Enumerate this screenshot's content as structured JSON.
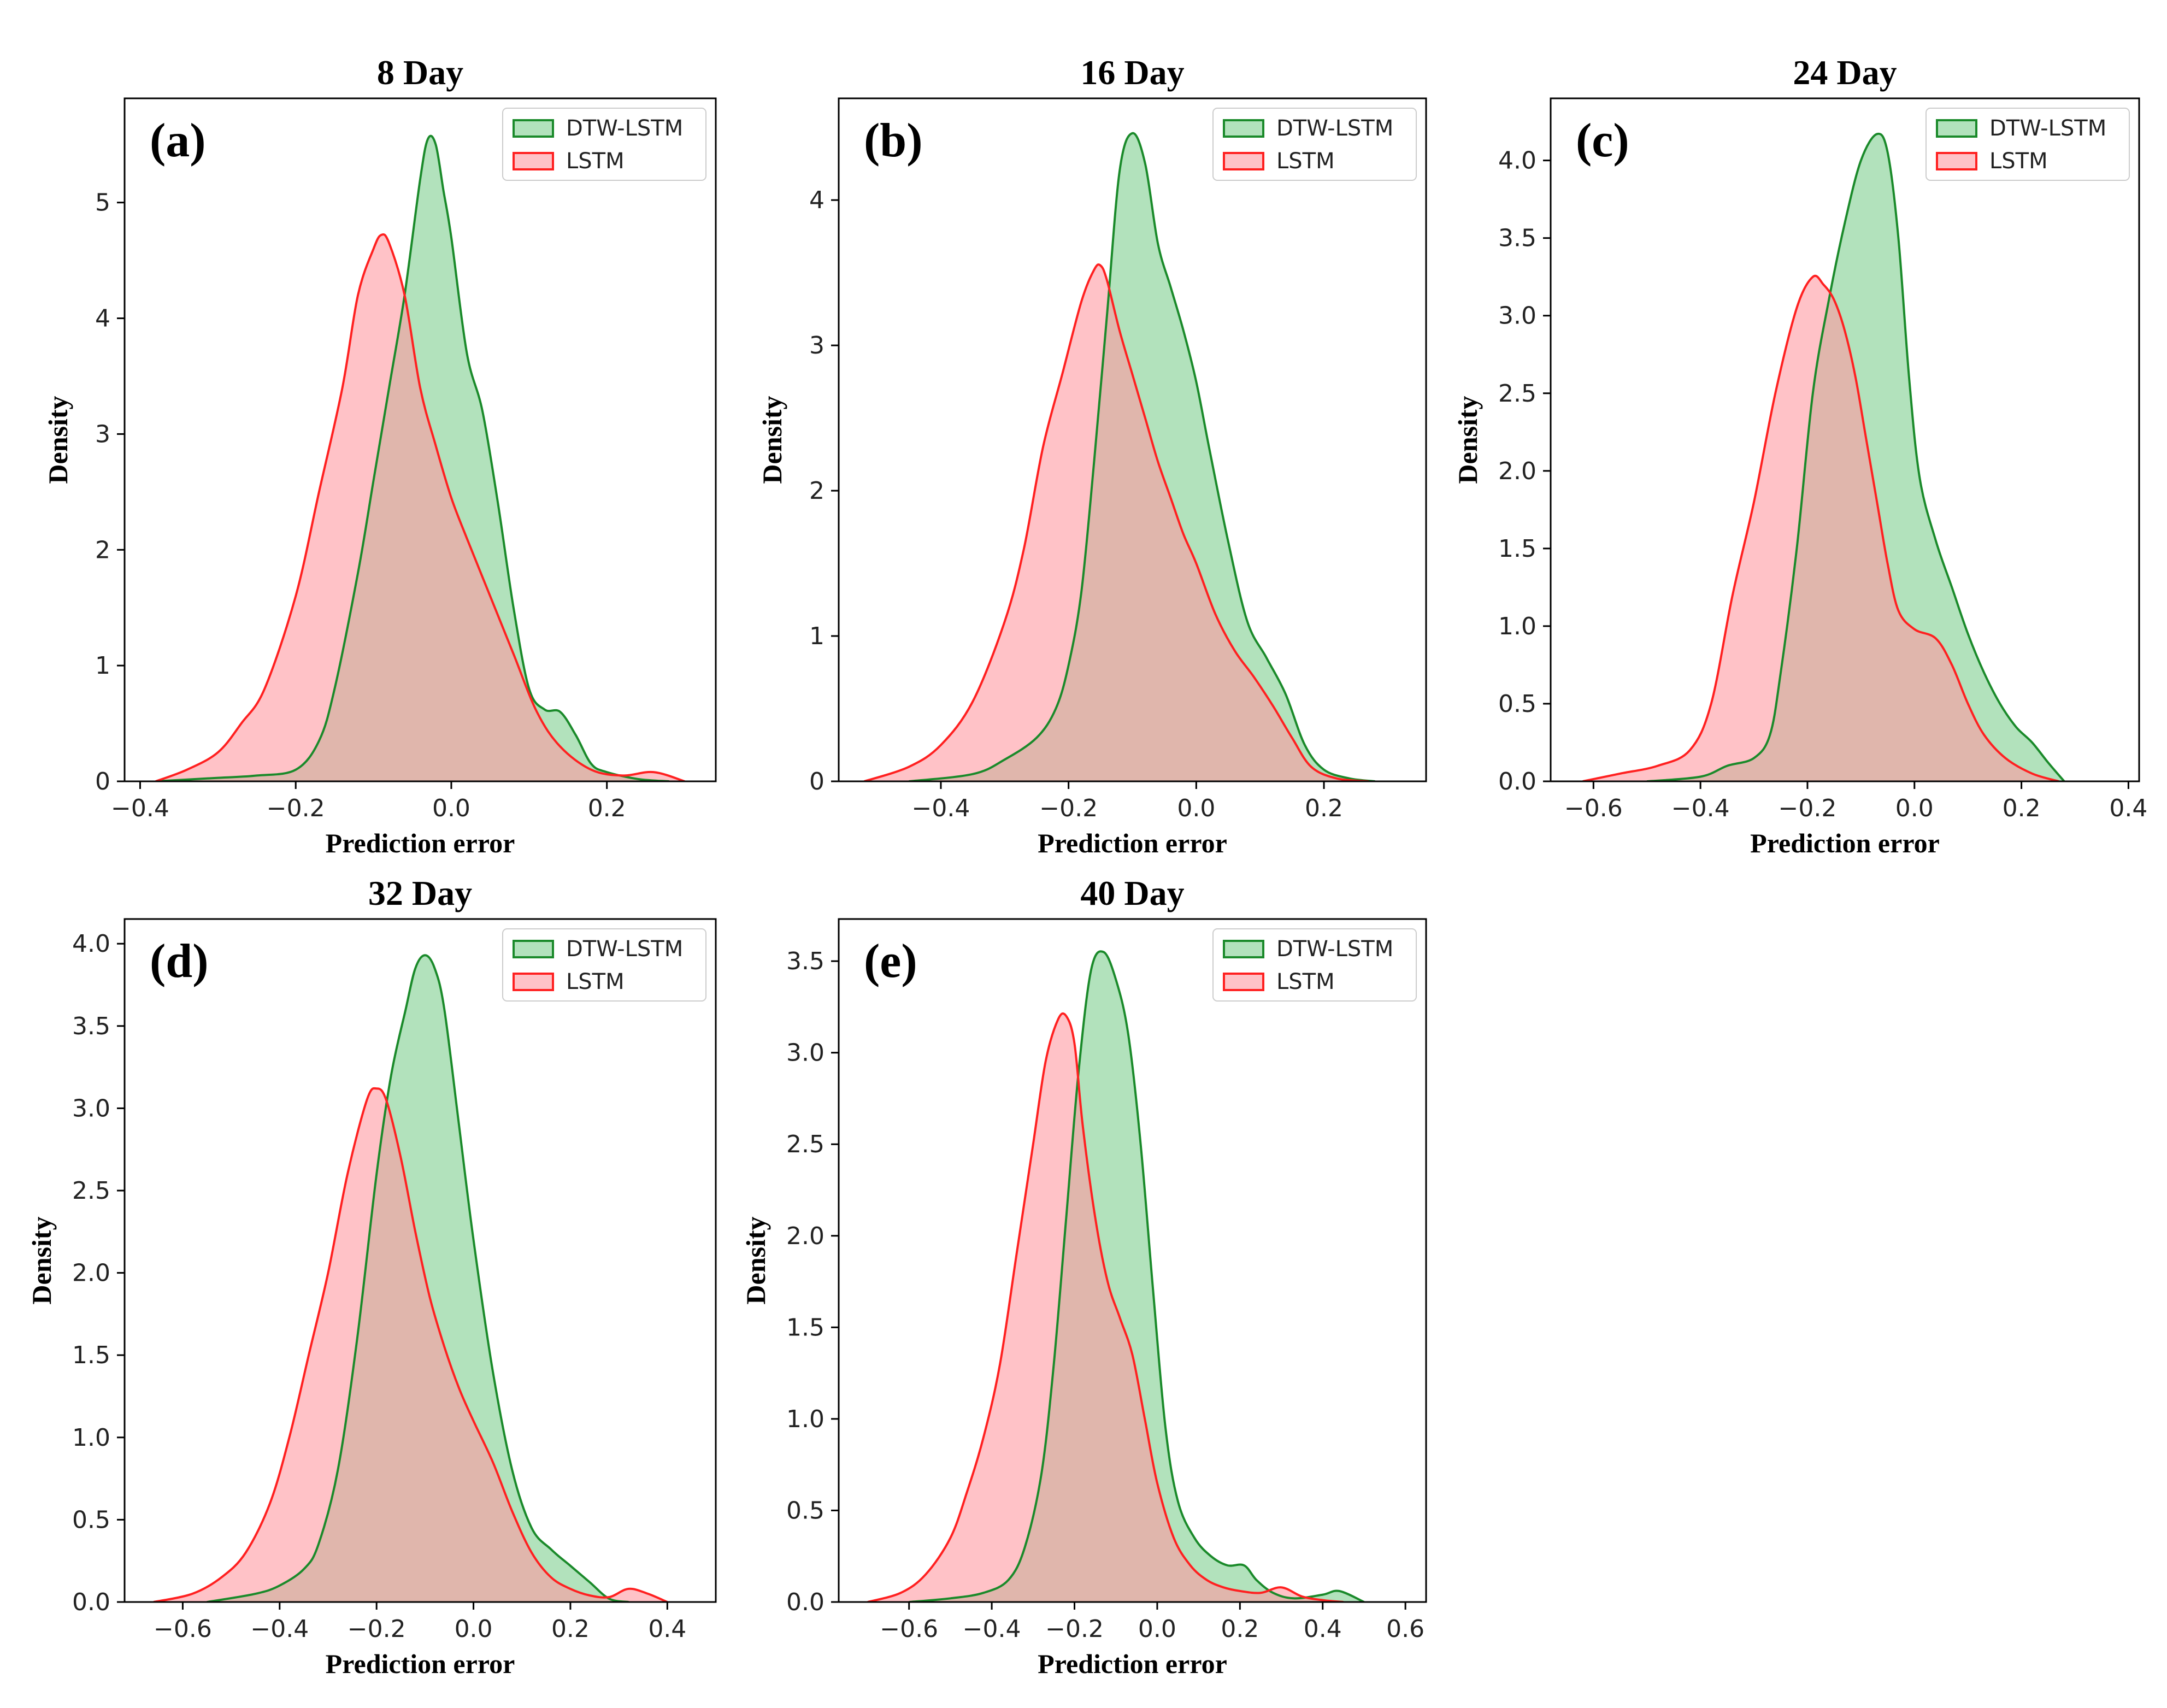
{
  "colors": {
    "dtw_line": "#1a8a2a",
    "dtw_fill": "#7fcf8f",
    "lstm_line": "#ff2020",
    "lstm_fill": "#ff9aa2",
    "axes": "#000000"
  },
  "chart_data": [
    {
      "type": "area",
      "id": "a",
      "letter": "(a)",
      "title": "8 Day",
      "xlabel": "Prediction error",
      "ylabel": "Density",
      "xlim": [
        -0.42,
        0.34
      ],
      "ylim": [
        0,
        5.9
      ],
      "xticks": [
        -0.4,
        -0.2,
        0.0,
        0.2
      ],
      "xtick_labels": [
        "−0.4",
        "−0.2",
        "0.0",
        "0.2"
      ],
      "yticks": [
        0,
        1,
        2,
        3,
        4,
        5
      ],
      "ytick_labels": [
        "0",
        "1",
        "2",
        "3",
        "4",
        "5"
      ],
      "legend": [
        "DTW-LSTM",
        "LSTM"
      ],
      "series": [
        {
          "name": "DTW-LSTM",
          "x": [
            -0.38,
            -0.3,
            -0.25,
            -0.2,
            -0.17,
            -0.15,
            -0.12,
            -0.1,
            -0.08,
            -0.06,
            -0.04,
            -0.03,
            -0.02,
            -0.01,
            0.0,
            0.02,
            0.04,
            0.06,
            0.08,
            0.1,
            0.12,
            0.14,
            0.16,
            0.18,
            0.2,
            0.24,
            0.28
          ],
          "y": [
            0,
            0.03,
            0.05,
            0.1,
            0.35,
            0.8,
            1.8,
            2.6,
            3.4,
            4.2,
            5.2,
            5.55,
            5.5,
            5.1,
            4.7,
            3.7,
            3.2,
            2.4,
            1.5,
            0.8,
            0.62,
            0.6,
            0.4,
            0.15,
            0.08,
            0.02,
            0
          ]
        },
        {
          "name": "LSTM",
          "x": [
            -0.38,
            -0.34,
            -0.3,
            -0.27,
            -0.24,
            -0.2,
            -0.17,
            -0.14,
            -0.12,
            -0.1,
            -0.09,
            -0.08,
            -0.06,
            -0.04,
            -0.02,
            0.0,
            0.02,
            0.05,
            0.08,
            0.11,
            0.14,
            0.18,
            0.22,
            0.26,
            0.3
          ],
          "y": [
            0,
            0.1,
            0.25,
            0.5,
            0.8,
            1.6,
            2.5,
            3.4,
            4.2,
            4.6,
            4.72,
            4.65,
            4.2,
            3.4,
            2.9,
            2.45,
            2.1,
            1.6,
            1.1,
            0.6,
            0.3,
            0.1,
            0.05,
            0.08,
            0
          ]
        }
      ]
    },
    {
      "type": "area",
      "id": "b",
      "letter": "(b)",
      "title": "16 Day",
      "xlabel": "Prediction error",
      "ylabel": "Density",
      "xlim": [
        -0.56,
        0.36
      ],
      "ylim": [
        0,
        4.7
      ],
      "xticks": [
        -0.4,
        -0.2,
        0.0,
        0.2
      ],
      "xtick_labels": [
        "−0.4",
        "−0.2",
        "0.0",
        "0.2"
      ],
      "yticks": [
        0,
        1,
        2,
        3,
        4
      ],
      "ytick_labels": [
        "0",
        "1",
        "2",
        "3",
        "4"
      ],
      "legend": [
        "DTW-LSTM",
        "LSTM"
      ],
      "series": [
        {
          "name": "DTW-LSTM",
          "x": [
            -0.45,
            -0.35,
            -0.3,
            -0.25,
            -0.22,
            -0.2,
            -0.18,
            -0.16,
            -0.14,
            -0.12,
            -0.1,
            -0.08,
            -0.06,
            -0.04,
            -0.02,
            0.0,
            0.02,
            0.05,
            0.08,
            0.11,
            0.14,
            0.17,
            0.2,
            0.24,
            0.28
          ],
          "y": [
            0,
            0.05,
            0.15,
            0.3,
            0.5,
            0.8,
            1.3,
            2.2,
            3.2,
            4.2,
            4.46,
            4.25,
            3.7,
            3.4,
            3.1,
            2.75,
            2.3,
            1.65,
            1.1,
            0.85,
            0.6,
            0.25,
            0.08,
            0.02,
            0
          ]
        },
        {
          "name": "LSTM",
          "x": [
            -0.52,
            -0.45,
            -0.4,
            -0.35,
            -0.3,
            -0.27,
            -0.24,
            -0.21,
            -0.18,
            -0.16,
            -0.15,
            -0.14,
            -0.12,
            -0.1,
            -0.08,
            -0.06,
            -0.04,
            -0.02,
            0.0,
            0.03,
            0.06,
            0.09,
            0.12,
            0.15,
            0.18,
            0.22,
            0.27
          ],
          "y": [
            0,
            0.1,
            0.25,
            0.55,
            1.1,
            1.6,
            2.3,
            2.8,
            3.3,
            3.52,
            3.55,
            3.45,
            3.1,
            2.8,
            2.5,
            2.2,
            1.95,
            1.7,
            1.5,
            1.15,
            0.9,
            0.72,
            0.52,
            0.3,
            0.1,
            0.02,
            0
          ]
        }
      ]
    },
    {
      "type": "area",
      "id": "c",
      "letter": "(c)",
      "title": "24 Day",
      "xlabel": "Prediction error",
      "ylabel": "Density",
      "xlim": [
        -0.68,
        0.42
      ],
      "ylim": [
        0,
        4.4
      ],
      "xticks": [
        -0.6,
        -0.4,
        -0.2,
        0.0,
        0.2,
        0.4
      ],
      "xtick_labels": [
        "−0.6",
        "−0.4",
        "−0.2",
        "0.0",
        "0.2",
        "0.4"
      ],
      "yticks": [
        0,
        0.5,
        1.0,
        1.5,
        2.0,
        2.5,
        3.0,
        3.5,
        4.0
      ],
      "ytick_labels": [
        "0.0",
        "0.5",
        "1.0",
        "1.5",
        "2.0",
        "2.5",
        "3.0",
        "3.5",
        "4.0"
      ],
      "legend": [
        "DTW-LSTM",
        "LSTM"
      ],
      "series": [
        {
          "name": "DTW-LSTM",
          "x": [
            -0.5,
            -0.4,
            -0.35,
            -0.3,
            -0.27,
            -0.25,
            -0.22,
            -0.19,
            -0.16,
            -0.13,
            -0.1,
            -0.07,
            -0.05,
            -0.03,
            -0.01,
            0.01,
            0.04,
            0.07,
            0.1,
            0.13,
            0.16,
            0.19,
            0.22,
            0.25,
            0.28
          ],
          "y": [
            0,
            0.03,
            0.1,
            0.15,
            0.3,
            0.7,
            1.5,
            2.5,
            3.1,
            3.6,
            4.0,
            4.17,
            4.05,
            3.5,
            2.6,
            1.95,
            1.55,
            1.25,
            0.95,
            0.7,
            0.5,
            0.35,
            0.25,
            0.12,
            0
          ]
        },
        {
          "name": "LSTM",
          "x": [
            -0.62,
            -0.55,
            -0.48,
            -0.42,
            -0.38,
            -0.34,
            -0.3,
            -0.26,
            -0.22,
            -0.19,
            -0.17,
            -0.15,
            -0.13,
            -0.11,
            -0.09,
            -0.07,
            -0.05,
            -0.03,
            0.0,
            0.04,
            0.07,
            0.1,
            0.13,
            0.17,
            0.22,
            0.27
          ],
          "y": [
            0,
            0.05,
            0.1,
            0.2,
            0.5,
            1.2,
            1.8,
            2.5,
            3.05,
            3.25,
            3.2,
            3.1,
            2.9,
            2.6,
            2.2,
            1.8,
            1.4,
            1.1,
            0.98,
            0.92,
            0.75,
            0.5,
            0.3,
            0.15,
            0.05,
            0
          ]
        }
      ]
    },
    {
      "type": "area",
      "id": "d",
      "letter": "(d)",
      "title": "32 Day",
      "xlabel": "Prediction error",
      "ylabel": "Density",
      "xlim": [
        -0.72,
        0.5
      ],
      "ylim": [
        0,
        4.15
      ],
      "xticks": [
        -0.6,
        -0.4,
        -0.2,
        0.0,
        0.2,
        0.4
      ],
      "xtick_labels": [
        "−0.6",
        "−0.4",
        "−0.2",
        "0.0",
        "0.2",
        "0.4"
      ],
      "yticks": [
        0,
        0.5,
        1.0,
        1.5,
        2.0,
        2.5,
        3.0,
        3.5,
        4.0
      ],
      "ytick_labels": [
        "0.0",
        "0.5",
        "1.0",
        "1.5",
        "2.0",
        "2.5",
        "3.0",
        "3.5",
        "4.0"
      ],
      "legend": [
        "DTW-LSTM",
        "LSTM"
      ],
      "series": [
        {
          "name": "DTW-LSTM",
          "x": [
            -0.55,
            -0.45,
            -0.4,
            -0.35,
            -0.32,
            -0.28,
            -0.24,
            -0.2,
            -0.17,
            -0.14,
            -0.12,
            -0.1,
            -0.08,
            -0.06,
            -0.03,
            0.0,
            0.04,
            0.08,
            0.12,
            0.16,
            0.2,
            0.24,
            0.28,
            0.32
          ],
          "y": [
            0,
            0.05,
            0.1,
            0.2,
            0.35,
            0.8,
            1.6,
            2.6,
            3.2,
            3.6,
            3.85,
            3.93,
            3.85,
            3.6,
            2.9,
            2.2,
            1.4,
            0.8,
            0.45,
            0.32,
            0.22,
            0.12,
            0.02,
            0
          ]
        },
        {
          "name": "LSTM",
          "x": [
            -0.66,
            -0.58,
            -0.52,
            -0.47,
            -0.42,
            -0.38,
            -0.34,
            -0.3,
            -0.26,
            -0.22,
            -0.2,
            -0.18,
            -0.15,
            -0.12,
            -0.09,
            -0.06,
            -0.03,
            0.0,
            0.04,
            0.08,
            0.12,
            0.16,
            0.2,
            0.24,
            0.28,
            0.32,
            0.36,
            0.4
          ],
          "y": [
            0,
            0.05,
            0.15,
            0.3,
            0.6,
            1.0,
            1.5,
            2.0,
            2.6,
            3.05,
            3.12,
            3.05,
            2.7,
            2.25,
            1.85,
            1.55,
            1.3,
            1.1,
            0.85,
            0.55,
            0.3,
            0.15,
            0.08,
            0.04,
            0.03,
            0.08,
            0.05,
            0
          ]
        }
      ]
    },
    {
      "type": "area",
      "id": "e",
      "letter": "(e)",
      "title": "40 Day",
      "xlabel": "Prediction error",
      "ylabel": "Density",
      "xlim": [
        -0.77,
        0.65
      ],
      "ylim": [
        0,
        3.73
      ],
      "xticks": [
        -0.6,
        -0.4,
        -0.2,
        0.0,
        0.2,
        0.4,
        0.6
      ],
      "xtick_labels": [
        "−0.6",
        "−0.4",
        "−0.2",
        "0.0",
        "0.2",
        "0.4",
        "0.6"
      ],
      "yticks": [
        0,
        0.5,
        1.0,
        1.5,
        2.0,
        2.5,
        3.0,
        3.5
      ],
      "ytick_labels": [
        "0.0",
        "0.5",
        "1.0",
        "1.5",
        "2.0",
        "2.5",
        "3.0",
        "3.5"
      ],
      "legend": [
        "DTW-LSTM",
        "LSTM"
      ],
      "series": [
        {
          "name": "DTW-LSTM",
          "x": [
            -0.6,
            -0.5,
            -0.42,
            -0.36,
            -0.32,
            -0.28,
            -0.25,
            -0.22,
            -0.19,
            -0.16,
            -0.13,
            -0.1,
            -0.07,
            -0.04,
            -0.01,
            0.02,
            0.05,
            0.09,
            0.13,
            0.17,
            0.21,
            0.24,
            0.28,
            0.33,
            0.4,
            0.44,
            0.5
          ],
          "y": [
            0,
            0.02,
            0.05,
            0.12,
            0.3,
            0.7,
            1.3,
            2.1,
            2.9,
            3.45,
            3.55,
            3.4,
            3.1,
            2.5,
            1.7,
            0.95,
            0.55,
            0.35,
            0.25,
            0.2,
            0.2,
            0.12,
            0.05,
            0.02,
            0.04,
            0.06,
            0
          ]
        },
        {
          "name": "LSTM",
          "x": [
            -0.7,
            -0.62,
            -0.56,
            -0.5,
            -0.46,
            -0.42,
            -0.38,
            -0.34,
            -0.3,
            -0.27,
            -0.24,
            -0.22,
            -0.2,
            -0.18,
            -0.15,
            -0.12,
            -0.09,
            -0.06,
            -0.03,
            0.0,
            0.04,
            0.08,
            0.12,
            0.16,
            0.2,
            0.25,
            0.3,
            0.35,
            0.4,
            0.45
          ],
          "y": [
            0,
            0.05,
            0.15,
            0.35,
            0.6,
            0.9,
            1.3,
            1.9,
            2.5,
            2.95,
            3.18,
            3.2,
            3.05,
            2.6,
            2.1,
            1.75,
            1.55,
            1.35,
            1.0,
            0.65,
            0.35,
            0.2,
            0.12,
            0.08,
            0.06,
            0.05,
            0.08,
            0.03,
            0.01,
            0
          ]
        }
      ]
    }
  ]
}
